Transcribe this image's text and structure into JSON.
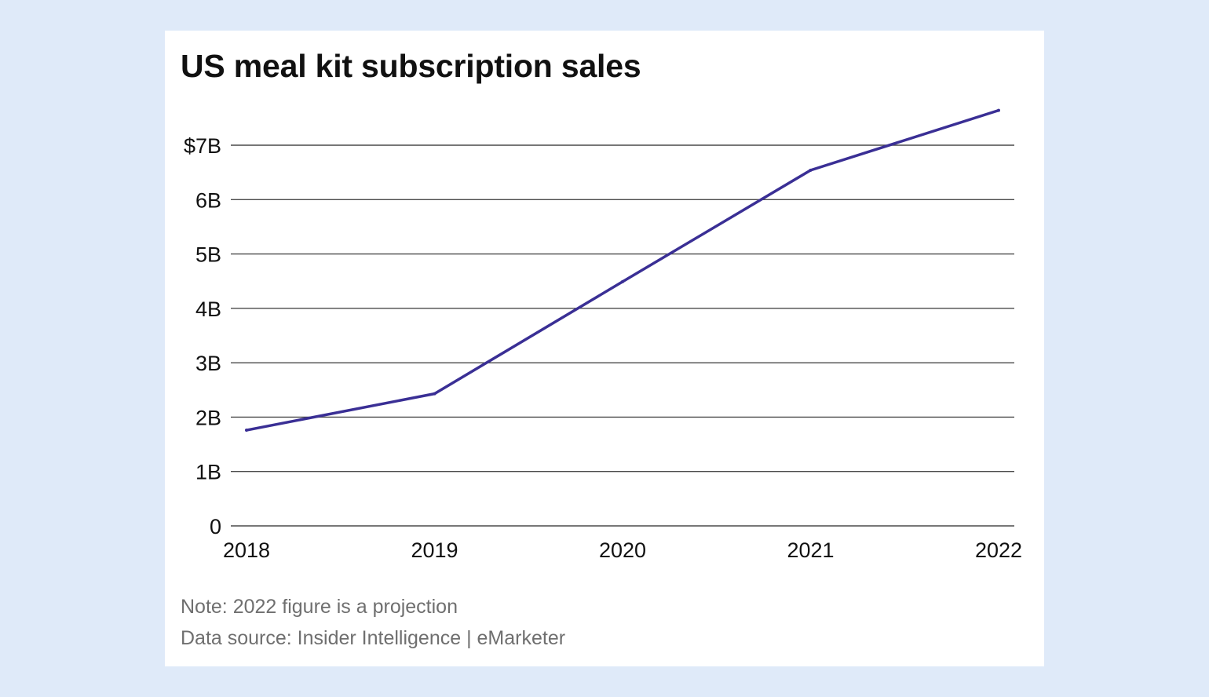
{
  "chart_data": {
    "type": "line",
    "title": "US meal kit subscription sales",
    "xlabel": "",
    "ylabel": "",
    "x": [
      "2018",
      "2019",
      "2020",
      "2021",
      "2022"
    ],
    "series": [
      {
        "name": "US meal kit subscription sales",
        "values": [
          1.76,
          2.43,
          4.49,
          6.54,
          7.64
        ],
        "color": "#3a2f95"
      }
    ],
    "ylim": [
      0,
      7
    ],
    "yticks": [
      0,
      1,
      2,
      3,
      4,
      5,
      6,
      7
    ],
    "ytick_labels": [
      "0",
      "1B",
      "2B",
      "3B",
      "4B",
      "5B",
      "6B",
      "$7B"
    ],
    "grid": true,
    "legend": "none",
    "notes": [
      "Note: 2022 figure is a projection",
      "Data source: Insider Intelligence | eMarketer"
    ]
  },
  "colors": {
    "background": "#dfeaf9",
    "card": "#ffffff",
    "line": "#3a2f95",
    "grid": "#4a4a4a",
    "note_text": "#6f6f6f"
  }
}
